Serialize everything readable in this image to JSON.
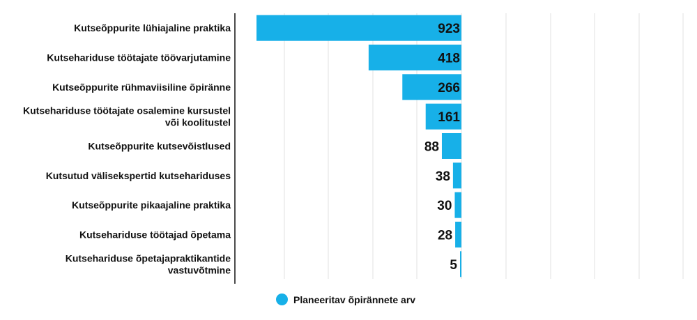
{
  "chart_data": {
    "type": "bar",
    "orientation": "horizontal",
    "direction": "right-to-left",
    "categories": [
      [
        "Kutseõppurite lühiajaline praktika"
      ],
      [
        "Kutsehariduse töötajate töövarjutamine"
      ],
      [
        "Kutseõppurite rühmaviisiline õpiränne"
      ],
      [
        "Kutsehariduse töötajate osalemine kursustel",
        "või koolitustel"
      ],
      [
        "Kutseõppurite kutsevõistlused"
      ],
      [
        "Kutsutud välisekspertid kutsehariduses"
      ],
      [
        "Kutseõppurite pikaajaline praktika"
      ],
      [
        "Kutsehariduse töötajad õpetama"
      ],
      [
        "Kutsehariduse õpetajapraktikantide",
        "vastuvõtmine"
      ]
    ],
    "series": [
      {
        "name": "Planeeritav õpirännete arv",
        "values": [
          923,
          418,
          266,
          161,
          88,
          38,
          30,
          28,
          5
        ]
      }
    ],
    "data_labels": [
      "923",
      "418",
      "266",
      "161",
      "88",
      "38",
      "30",
      "28",
      "5"
    ],
    "color": "#17b0e8",
    "grid": true,
    "legend_position": "bottom-center"
  },
  "legend": {
    "label": "Planeeritav õpirännete arv"
  }
}
